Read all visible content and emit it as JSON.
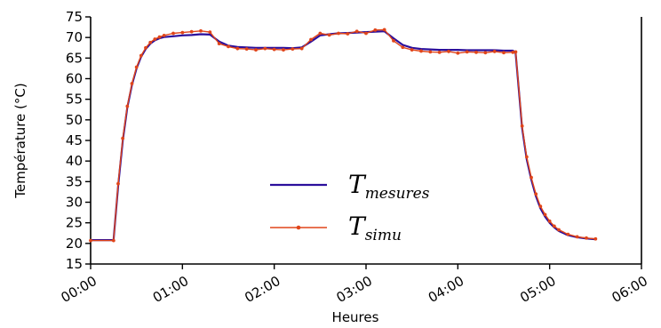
{
  "chart_data": {
    "type": "line",
    "title": "",
    "xlabel": "Heures",
    "ylabel": "Température (°C)",
    "x_unit": "hours",
    "xlim": [
      0,
      6
    ],
    "ylim": [
      15,
      75
    ],
    "x_tick_values": [
      0,
      1,
      2,
      3,
      4,
      5,
      6
    ],
    "x_tick_labels": [
      "00:00",
      "01:00",
      "02:00",
      "03:00",
      "04:00",
      "05:00",
      "06:00"
    ],
    "y_ticks": [
      15,
      20,
      25,
      30,
      35,
      40,
      45,
      50,
      55,
      60,
      65,
      70,
      75
    ],
    "grid": false,
    "legend_position": "center",
    "series": [
      {
        "name": "T",
        "name_subscript": "mesures",
        "color": "#2b0f9c",
        "marker": "none",
        "x": [
          0.0,
          0.25,
          0.3,
          0.35,
          0.4,
          0.45,
          0.5,
          0.55,
          0.6,
          0.65,
          0.7,
          0.75,
          0.8,
          0.9,
          1.0,
          1.1,
          1.2,
          1.3,
          1.4,
          1.5,
          1.6,
          1.7,
          1.8,
          1.9,
          2.0,
          2.1,
          2.2,
          2.3,
          2.4,
          2.5,
          2.6,
          2.7,
          2.8,
          2.9,
          3.0,
          3.1,
          3.2,
          3.3,
          3.4,
          3.5,
          3.6,
          3.7,
          3.8,
          3.9,
          4.0,
          4.1,
          4.2,
          4.3,
          4.4,
          4.5,
          4.6,
          4.63,
          4.7,
          4.75,
          4.8,
          4.85,
          4.9,
          4.95,
          5.0,
          5.05,
          5.1,
          5.2,
          5.3,
          5.4,
          5.5
        ],
        "y": [
          20.8,
          20.8,
          34.0,
          45.0,
          53.0,
          58.5,
          62.5,
          65.3,
          67.2,
          68.5,
          69.3,
          69.8,
          70.1,
          70.3,
          70.5,
          70.6,
          70.8,
          70.7,
          69.0,
          68.0,
          67.7,
          67.6,
          67.5,
          67.5,
          67.5,
          67.5,
          67.4,
          67.6,
          69.0,
          70.5,
          70.8,
          71.0,
          71.1,
          71.2,
          71.3,
          71.4,
          71.5,
          69.8,
          68.2,
          67.5,
          67.2,
          67.1,
          67.0,
          67.0,
          67.0,
          66.9,
          66.9,
          66.9,
          66.9,
          66.8,
          66.8,
          66.2,
          48.0,
          40.5,
          35.5,
          31.5,
          28.5,
          26.5,
          25.0,
          23.9,
          23.0,
          22.0,
          21.5,
          21.2,
          21.0
        ]
      },
      {
        "name": "T",
        "name_subscript": "simu",
        "color": "#e0451a",
        "marker": "dot",
        "x": [
          0.0,
          0.25,
          0.3,
          0.35,
          0.4,
          0.45,
          0.5,
          0.55,
          0.6,
          0.65,
          0.7,
          0.75,
          0.8,
          0.9,
          1.0,
          1.1,
          1.2,
          1.3,
          1.4,
          1.5,
          1.6,
          1.7,
          1.8,
          1.9,
          2.0,
          2.1,
          2.2,
          2.3,
          2.4,
          2.5,
          2.6,
          2.7,
          2.8,
          2.9,
          3.0,
          3.1,
          3.2,
          3.3,
          3.4,
          3.5,
          3.6,
          3.7,
          3.8,
          3.9,
          4.0,
          4.1,
          4.2,
          4.3,
          4.4,
          4.5,
          4.6,
          4.63,
          4.7,
          4.75,
          4.8,
          4.85,
          4.9,
          4.95,
          5.0,
          5.05,
          5.1,
          5.2,
          5.3,
          5.4,
          5.5
        ],
        "y": [
          20.7,
          20.7,
          34.5,
          45.5,
          53.3,
          58.8,
          62.8,
          65.6,
          67.5,
          68.8,
          69.6,
          70.1,
          70.5,
          71.0,
          71.2,
          71.4,
          71.6,
          71.3,
          68.5,
          67.8,
          67.3,
          67.2,
          67.0,
          67.3,
          67.1,
          67.0,
          67.2,
          67.3,
          69.5,
          71.0,
          70.6,
          71.0,
          70.9,
          71.5,
          71.0,
          71.8,
          71.9,
          69.2,
          67.6,
          67.0,
          66.7,
          66.5,
          66.4,
          66.6,
          66.2,
          66.5,
          66.4,
          66.3,
          66.6,
          66.3,
          66.4,
          66.5,
          48.5,
          41.0,
          36.0,
          32.0,
          29.0,
          27.0,
          25.4,
          24.2,
          23.3,
          22.2,
          21.6,
          21.3,
          21.1
        ]
      }
    ]
  }
}
